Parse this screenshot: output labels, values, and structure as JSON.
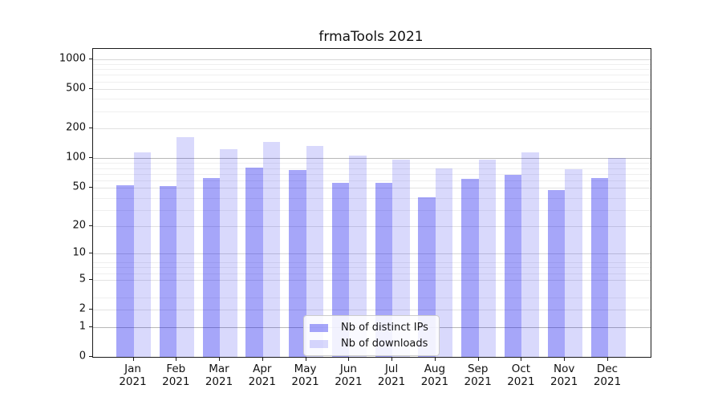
{
  "chart_data": {
    "type": "bar",
    "title": "frmaTools 2021",
    "categories": [
      "Jan",
      "Feb",
      "Mar",
      "Apr",
      "May",
      "Jun",
      "Jul",
      "Aug",
      "Sep",
      "Oct",
      "Nov",
      "Dec"
    ],
    "x_year": "2021",
    "series": [
      {
        "name": "Nb of distinct IPs",
        "color": "rgba(0,0,238,0.35)",
        "values": [
          53,
          52,
          63,
          80,
          76,
          56,
          56,
          40,
          61,
          67,
          47,
          63
        ]
      },
      {
        "name": "Nb of downloads",
        "color": "rgba(0,0,238,0.15)",
        "values": [
          114,
          163,
          124,
          146,
          132,
          107,
          96,
          79,
          96,
          114,
          77,
          101
        ]
      }
    ],
    "yticks": [
      0,
      1,
      2,
      5,
      10,
      20,
      50,
      100,
      200,
      500,
      1000
    ],
    "yscale": "log1p",
    "ylim": [
      0,
      1270
    ],
    "grid": true,
    "legend_position": "lower center",
    "colors": {
      "grid_minor": "#efefef",
      "grid_light": "#e2e2e2",
      "grid_medium": "#d7d7d7",
      "grid_dark": "#b8b8b8",
      "axis": "#1a1a1a"
    }
  }
}
